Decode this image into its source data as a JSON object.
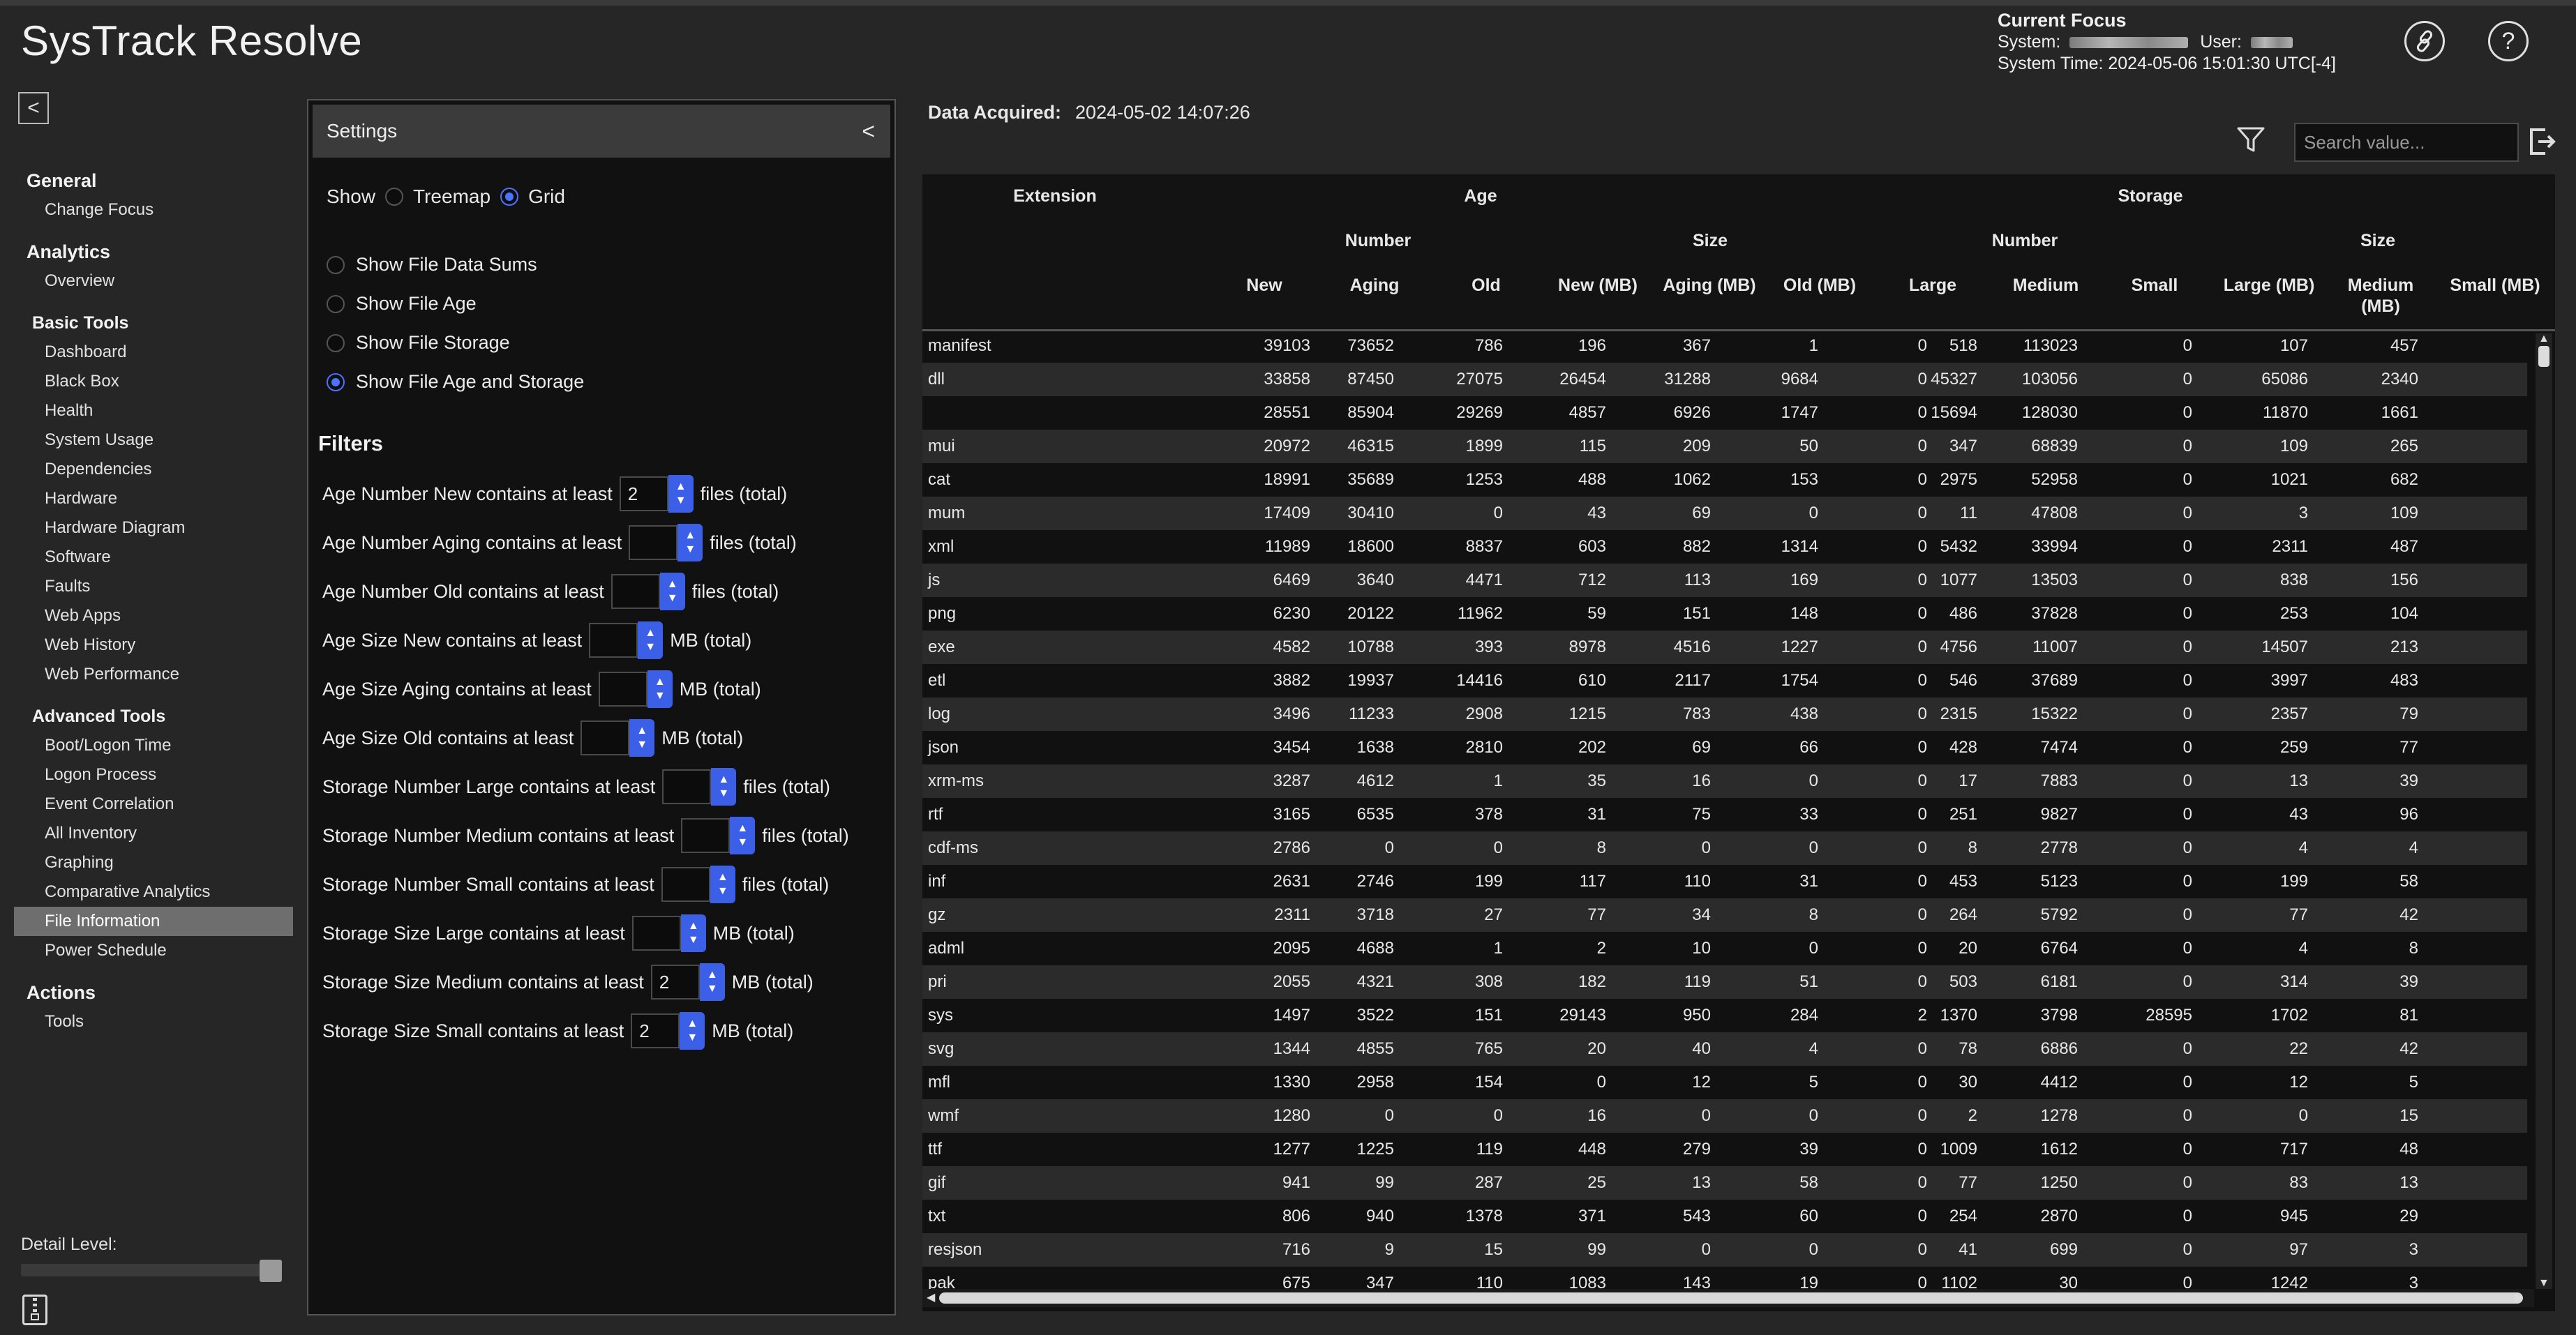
{
  "app": {
    "title": "SysTrack Resolve"
  },
  "focus": {
    "heading": "Current Focus",
    "system_label": "System:",
    "user_label": "User:",
    "system_time": "System Time: 2024-05-06 15:01:30 UTC[-4]"
  },
  "nav": {
    "general": {
      "label": "General",
      "items": [
        "Change Focus"
      ]
    },
    "analytics": {
      "label": "Analytics",
      "items": [
        "Overview"
      ]
    },
    "basic_tools": {
      "label": "Basic Tools",
      "items": [
        "Dashboard",
        "Black Box",
        "Health",
        "System Usage",
        "Dependencies",
        "Hardware",
        "Hardware Diagram",
        "Software",
        "Faults",
        "Web Apps",
        "Web History",
        "Web Performance"
      ]
    },
    "advanced_tools": {
      "label": "Advanced Tools",
      "items": [
        "Boot/Logon Time",
        "Logon Process",
        "Event Correlation",
        "All Inventory",
        "Graphing",
        "Comparative Analytics",
        "File Information",
        "Power Schedule"
      ]
    },
    "actions": {
      "label": "Actions",
      "items": [
        "Tools"
      ]
    },
    "active_item": "File Information",
    "detail_level_label": "Detail Level:"
  },
  "settings": {
    "title": "Settings",
    "show_label": "Show",
    "view_options": [
      "Treemap",
      "Grid"
    ],
    "selected_view": "Grid",
    "options": [
      "Show File Data Sums",
      "Show File Age",
      "Show File Storage",
      "Show File Age and Storage"
    ],
    "selected_option": "Show File Age and Storage",
    "filters_title": "Filters",
    "filters": [
      {
        "label": "Age Number New contains at least",
        "value": "2",
        "unit": "files (total)"
      },
      {
        "label": "Age Number Aging contains at least",
        "value": "",
        "unit": "files (total)"
      },
      {
        "label": "Age Number Old contains at least",
        "value": "",
        "unit": "files (total)"
      },
      {
        "label": "Age Size New contains at least",
        "value": "",
        "unit": "MB (total)"
      },
      {
        "label": "Age Size Aging contains at least",
        "value": "",
        "unit": "MB (total)"
      },
      {
        "label": "Age Size Old contains at least",
        "value": "",
        "unit": "MB (total)"
      },
      {
        "label": "Storage Number Large contains at least",
        "value": "",
        "unit": "files (total)"
      },
      {
        "label": "Storage Number Medium contains at least",
        "value": "",
        "unit": "files (total)"
      },
      {
        "label": "Storage Number Small contains at least",
        "value": "",
        "unit": "files (total)"
      },
      {
        "label": "Storage Size Large contains at least",
        "value": "",
        "unit": "MB (total)"
      },
      {
        "label": "Storage Size Medium contains at least",
        "value": "2",
        "unit": "MB (total)"
      },
      {
        "label": "Storage Size Small contains at least",
        "value": "2",
        "unit": "MB (total)"
      }
    ]
  },
  "data": {
    "acquired_label": "Data Acquired:",
    "acquired_value": "2024-05-02 14:07:26",
    "search_placeholder": "Search value..."
  },
  "grid": {
    "header_groups": {
      "extension": "Extension",
      "age": "Age",
      "storage": "Storage",
      "number": "Number",
      "size": "Size"
    },
    "columns": [
      "New",
      "Aging",
      "Old",
      "New (MB)",
      "Aging (MB)",
      "Old (MB)",
      "Large",
      "Medium",
      "Small",
      "Large (MB)",
      "Medium (MB)",
      "Small (MB)"
    ],
    "rows": [
      [
        "manifest",
        "39103",
        "73652",
        "786",
        "196",
        "367",
        "1",
        "0",
        "518",
        "113023",
        "0",
        "107",
        "457"
      ],
      [
        "dll",
        "33858",
        "87450",
        "27075",
        "26454",
        "31288",
        "9684",
        "0",
        "45327",
        "103056",
        "0",
        "65086",
        "2340"
      ],
      [
        "",
        "28551",
        "85904",
        "29269",
        "4857",
        "6926",
        "1747",
        "0",
        "15694",
        "128030",
        "0",
        "11870",
        "1661"
      ],
      [
        "mui",
        "20972",
        "46315",
        "1899",
        "115",
        "209",
        "50",
        "0",
        "347",
        "68839",
        "0",
        "109",
        "265"
      ],
      [
        "cat",
        "18991",
        "35689",
        "1253",
        "488",
        "1062",
        "153",
        "0",
        "2975",
        "52958",
        "0",
        "1021",
        "682"
      ],
      [
        "mum",
        "17409",
        "30410",
        "0",
        "43",
        "69",
        "0",
        "0",
        "11",
        "47808",
        "0",
        "3",
        "109"
      ],
      [
        "xml",
        "11989",
        "18600",
        "8837",
        "603",
        "882",
        "1314",
        "0",
        "5432",
        "33994",
        "0",
        "2311",
        "487"
      ],
      [
        "js",
        "6469",
        "3640",
        "4471",
        "712",
        "113",
        "169",
        "0",
        "1077",
        "13503",
        "0",
        "838",
        "156"
      ],
      [
        "png",
        "6230",
        "20122",
        "11962",
        "59",
        "151",
        "148",
        "0",
        "486",
        "37828",
        "0",
        "253",
        "104"
      ],
      [
        "exe",
        "4582",
        "10788",
        "393",
        "8978",
        "4516",
        "1227",
        "0",
        "4756",
        "11007",
        "0",
        "14507",
        "213"
      ],
      [
        "etl",
        "3882",
        "19937",
        "14416",
        "610",
        "2117",
        "1754",
        "0",
        "546",
        "37689",
        "0",
        "3997",
        "483"
      ],
      [
        "log",
        "3496",
        "11233",
        "2908",
        "1215",
        "783",
        "438",
        "0",
        "2315",
        "15322",
        "0",
        "2357",
        "79"
      ],
      [
        "json",
        "3454",
        "1638",
        "2810",
        "202",
        "69",
        "66",
        "0",
        "428",
        "7474",
        "0",
        "259",
        "77"
      ],
      [
        "xrm-ms",
        "3287",
        "4612",
        "1",
        "35",
        "16",
        "0",
        "0",
        "17",
        "7883",
        "0",
        "13",
        "39"
      ],
      [
        "rtf",
        "3165",
        "6535",
        "378",
        "31",
        "75",
        "33",
        "0",
        "251",
        "9827",
        "0",
        "43",
        "96"
      ],
      [
        "cdf-ms",
        "2786",
        "0",
        "0",
        "8",
        "0",
        "0",
        "0",
        "8",
        "2778",
        "0",
        "4",
        "4"
      ],
      [
        "inf",
        "2631",
        "2746",
        "199",
        "117",
        "110",
        "31",
        "0",
        "453",
        "5123",
        "0",
        "199",
        "58"
      ],
      [
        "gz",
        "2311",
        "3718",
        "27",
        "77",
        "34",
        "8",
        "0",
        "264",
        "5792",
        "0",
        "77",
        "42"
      ],
      [
        "adml",
        "2095",
        "4688",
        "1",
        "2",
        "10",
        "0",
        "0",
        "20",
        "6764",
        "0",
        "4",
        "8"
      ],
      [
        "pri",
        "2055",
        "4321",
        "308",
        "182",
        "119",
        "51",
        "0",
        "503",
        "6181",
        "0",
        "314",
        "39"
      ],
      [
        "sys",
        "1497",
        "3522",
        "151",
        "29143",
        "950",
        "284",
        "2",
        "1370",
        "3798",
        "28595",
        "1702",
        "81"
      ],
      [
        "svg",
        "1344",
        "4855",
        "765",
        "20",
        "40",
        "4",
        "0",
        "78",
        "6886",
        "0",
        "22",
        "42"
      ],
      [
        "mfl",
        "1330",
        "2958",
        "154",
        "0",
        "12",
        "5",
        "0",
        "30",
        "4412",
        "0",
        "12",
        "5"
      ],
      [
        "wmf",
        "1280",
        "0",
        "0",
        "16",
        "0",
        "0",
        "0",
        "2",
        "1278",
        "0",
        "0",
        "15"
      ],
      [
        "ttf",
        "1277",
        "1225",
        "119",
        "448",
        "279",
        "39",
        "0",
        "1009",
        "1612",
        "0",
        "717",
        "48"
      ],
      [
        "gif",
        "941",
        "99",
        "287",
        "25",
        "13",
        "58",
        "0",
        "77",
        "1250",
        "0",
        "83",
        "13"
      ],
      [
        "txt",
        "806",
        "940",
        "1378",
        "371",
        "543",
        "60",
        "0",
        "254",
        "2870",
        "0",
        "945",
        "29"
      ],
      [
        "resjson",
        "716",
        "9",
        "15",
        "99",
        "0",
        "0",
        "0",
        "41",
        "699",
        "0",
        "97",
        "3"
      ],
      [
        "pak",
        "675",
        "347",
        "110",
        "1083",
        "143",
        "19",
        "0",
        "1102",
        "30",
        "0",
        "1242",
        "3"
      ]
    ]
  }
}
